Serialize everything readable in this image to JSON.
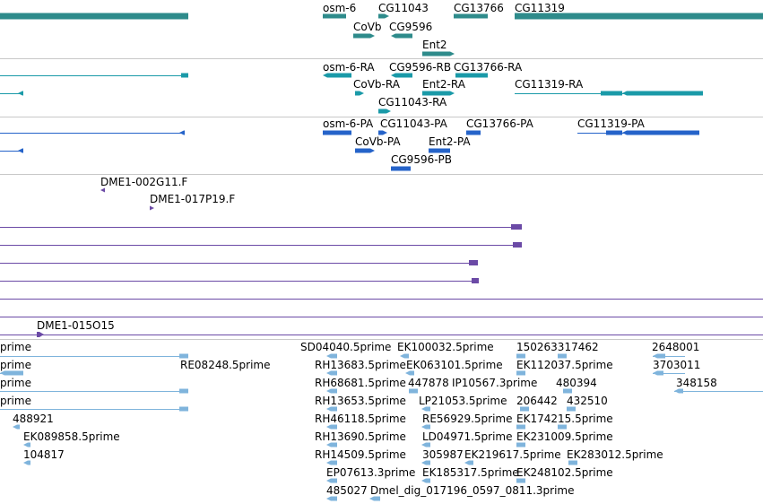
{
  "colors": {
    "gene": "#2e8b8b",
    "mrna": "#1a9aa8",
    "cds": "#2563c9",
    "clone": "#6b4aa6",
    "est": "#7fb4dc",
    "divider": "#c8c8c8",
    "text": "#000000"
  },
  "tracks": [
    {
      "id": "genes",
      "color_key": "gene",
      "labels": [
        "osm-6",
        "CG11043",
        "CG13766",
        "CG11319",
        "CoVb",
        "CG9596",
        "Ent2"
      ]
    },
    {
      "id": "transcripts",
      "color_key": "mrna",
      "labels": [
        "osm-6-RA",
        "CG9596-RB",
        "CG13766-RA",
        "CoVb-RA",
        "Ent2-RA",
        "CG11319-RA",
        "CG11043-RA"
      ]
    },
    {
      "id": "proteins",
      "color_key": "cds",
      "labels": [
        "osm-6-PA",
        "CG11043-PA",
        "CG13766-PA",
        "CG11319-PA",
        "CoVb-PA",
        "Ent2-PA",
        "CG9596-PB"
      ]
    },
    {
      "id": "bac-ends",
      "color_key": "clone",
      "labels": [
        "DME1-002G11.F",
        "DME1-017P19.F"
      ]
    },
    {
      "id": "clones",
      "color_key": "clone",
      "labels": [
        "DME1-015O15"
      ]
    },
    {
      "id": "ests",
      "color_key": "est",
      "labels": [
        "prime",
        "SD04040.5prime",
        "EK100032.5prime",
        "150263317462",
        "2648001",
        "prime",
        "RE08248.5prime",
        "RH13683.5prime",
        "EK063101.5prime",
        "EK112037.5prime",
        "3703011",
        "prime",
        "RH68681.5prime",
        "447878",
        "IP10567.3prime",
        "480394",
        "348158",
        "prime",
        "RH13653.5prime",
        "LP21053.5prime",
        "206442",
        "432510",
        "488921",
        "RH46118.5prime",
        "RE56929.5prime",
        "EK174215.5prime",
        "EK089858.5prime",
        "RH13690.5prime",
        "LD04971.5prime",
        "EK231009.5prime",
        "104817",
        "RH14509.5prime",
        "305987",
        "EK219617.5prime",
        "EK283012.5prime",
        "EP07613.3prime",
        "EK185317.5prime",
        "EK248102.5prime",
        "485027",
        "Dmel_dig_017196_0597_0811.3prime"
      ]
    }
  ]
}
